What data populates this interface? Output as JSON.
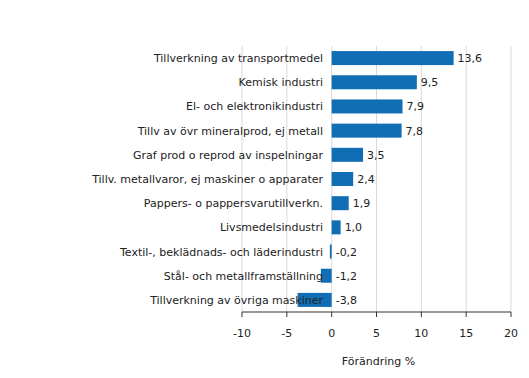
{
  "chart_data": {
    "type": "bar",
    "orientation": "horizontal",
    "categories": [
      "Tillverkning av transportmedel",
      "Kemisk industri",
      "El- och elektronikindustri",
      "Tillv av övr mineralprod, ej metall",
      "Graf prod o reprod av inspelningar",
      "Tillv. metallvaror, ej maskiner o apparater",
      "Pappers- o pappersvarutillverkn.",
      "Livsmedelsindustri",
      "Textil-, beklädnads- och läderindustri",
      "Stål- och metallframställning",
      "Tillverkning av övriga maskiner"
    ],
    "values": [
      13.6,
      9.5,
      7.9,
      7.8,
      3.5,
      2.4,
      1.9,
      1.0,
      -0.2,
      -1.2,
      -3.8
    ],
    "value_labels": [
      "13,6",
      "9,5",
      "7,9",
      "7,8",
      "3,5",
      "2,4",
      "1,9",
      "1,0",
      "-0,2",
      "-1,2",
      "-3,8"
    ],
    "data_labels": true,
    "color": "#0f6eb4",
    "x_label": "Förändring %",
    "xlim": [
      -10,
      20
    ],
    "xticks": [
      -10,
      -5,
      0,
      5,
      10,
      15,
      20
    ],
    "grid": true
  }
}
